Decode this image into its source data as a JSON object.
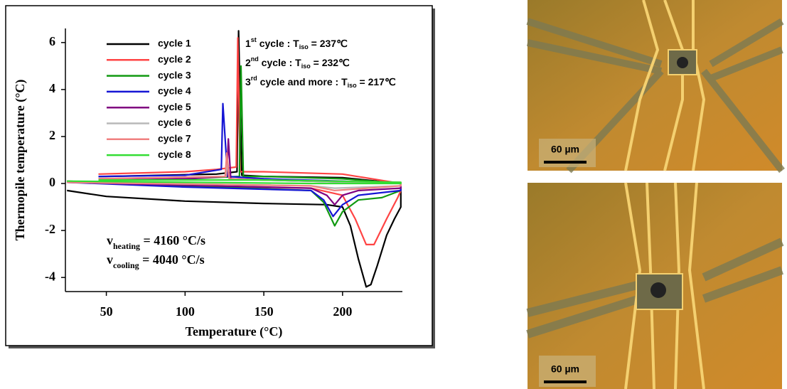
{
  "chart_data": {
    "type": "line",
    "xlabel": "Temperature (°C)",
    "ylabel": "Thermopile temperature (°C)",
    "xlim": [
      24,
      238
    ],
    "xticks": [
      50,
      100,
      150,
      200
    ],
    "ylim": [
      -4.6,
      6.6
    ],
    "yticks": [
      -4,
      -2,
      0,
      2,
      4,
      6
    ],
    "legend": "upper left",
    "series": [
      {
        "name": "cycle 1",
        "color": "#000000",
        "x": [
          25,
          50,
          100,
          150,
          190,
          200,
          205,
          210,
          215,
          218,
          222,
          228,
          233,
          237,
          237,
          200,
          150,
          136,
          134,
          133,
          120,
          50,
          45
        ],
        "values": [
          -0.3,
          -0.55,
          -0.75,
          -0.85,
          -0.9,
          -1.0,
          -1.8,
          -3.2,
          -4.4,
          -4.3,
          -3.5,
          -2.2,
          -1.5,
          -1.0,
          0.0,
          0.25,
          0.3,
          0.35,
          6.5,
          0.5,
          0.4,
          0.3,
          0.3
        ]
      },
      {
        "name": "cycle 2",
        "color": "#ff4444",
        "x": [
          25,
          100,
          180,
          200,
          208,
          215,
          220,
          228,
          235,
          237,
          237,
          200,
          150,
          135,
          133.5,
          132.5,
          120,
          100,
          45
        ],
        "values": [
          0.1,
          -0.1,
          -0.2,
          -0.5,
          -1.5,
          -2.6,
          -2.6,
          -1.5,
          -0.6,
          -0.3,
          0.0,
          0.4,
          0.5,
          0.5,
          6.2,
          0.7,
          0.6,
          0.5,
          0.4
        ]
      },
      {
        "name": "cycle 3",
        "color": "#119911",
        "x": [
          25,
          100,
          180,
          188,
          195,
          200,
          210,
          225,
          237,
          237,
          200,
          150,
          137,
          135.5,
          134.5,
          100,
          45
        ],
        "values": [
          0.1,
          -0.1,
          -0.3,
          -0.8,
          -1.8,
          -1.2,
          -0.7,
          -0.6,
          -0.3,
          0.0,
          0.2,
          0.3,
          0.3,
          5,
          0.3,
          0.2,
          0.2
        ]
      },
      {
        "name": "cycle 4",
        "color": "#1515d4",
        "x": [
          25,
          100,
          180,
          188,
          194,
          200,
          210,
          237,
          237,
          200,
          150,
          127,
          124,
          123,
          100,
          45
        ],
        "values": [
          0.05,
          -0.15,
          -0.3,
          -0.7,
          -1.4,
          -0.9,
          -0.5,
          -0.3,
          0.0,
          0.1,
          0.2,
          0.3,
          3.4,
          0.6,
          0.35,
          0.3
        ]
      },
      {
        "name": "cycle 5",
        "color": "#800080",
        "x": [
          25,
          180,
          190,
          195,
          200,
          210,
          237,
          237,
          150,
          129,
          127.5,
          126.5,
          100,
          45
        ],
        "values": [
          0.05,
          -0.2,
          -0.5,
          -0.9,
          -0.5,
          -0.3,
          -0.2,
          0.0,
          0.15,
          0.2,
          1.9,
          0.3,
          0.2,
          0.2
        ]
      },
      {
        "name": "cycle 6",
        "color": "#b8b8b8",
        "x": [
          25,
          180,
          195,
          237,
          237,
          150,
          128,
          127,
          126,
          45
        ],
        "values": [
          0.05,
          -0.1,
          -0.2,
          -0.1,
          0.0,
          0.15,
          0.2,
          1.0,
          0.3,
          0.2
        ]
      },
      {
        "name": "cycle 7",
        "color": "#f08080",
        "x": [
          25,
          180,
          195,
          237,
          237,
          150,
          128,
          126.5,
          125.5,
          45
        ],
        "values": [
          0.05,
          -0.1,
          -0.3,
          -0.1,
          0.05,
          0.15,
          0.2,
          1.3,
          0.3,
          0.2
        ]
      },
      {
        "name": "cycle 8",
        "color": "#33dd33",
        "x": [
          25,
          180,
          237,
          237,
          150,
          45
        ],
        "values": [
          0.1,
          0.0,
          0.0,
          0.05,
          0.15,
          0.15
        ]
      }
    ],
    "annotations": [
      {
        "prefix": "1",
        "superscript": "st",
        "text": " cycle : T",
        "subscript": "iso",
        "suffix": " = 237℃"
      },
      {
        "prefix": "2",
        "superscript": "nd",
        "text": " cycle : T",
        "subscript": "iso",
        "suffix": " = 232℃"
      },
      {
        "prefix": "3",
        "superscript": "rd",
        "text": " cycle and more : T",
        "subscript": "iso",
        "suffix": " = 217℃"
      }
    ],
    "rates": [
      {
        "symbol": "v",
        "subscript": "heating",
        "text": " = 4160 °C/s"
      },
      {
        "symbol": "v",
        "subscript": "cooling",
        "text": " = 4040 °C/s"
      }
    ]
  },
  "micrographs": [
    {
      "scale_label": "60 µm"
    },
    {
      "scale_label": "60 µm"
    }
  ]
}
